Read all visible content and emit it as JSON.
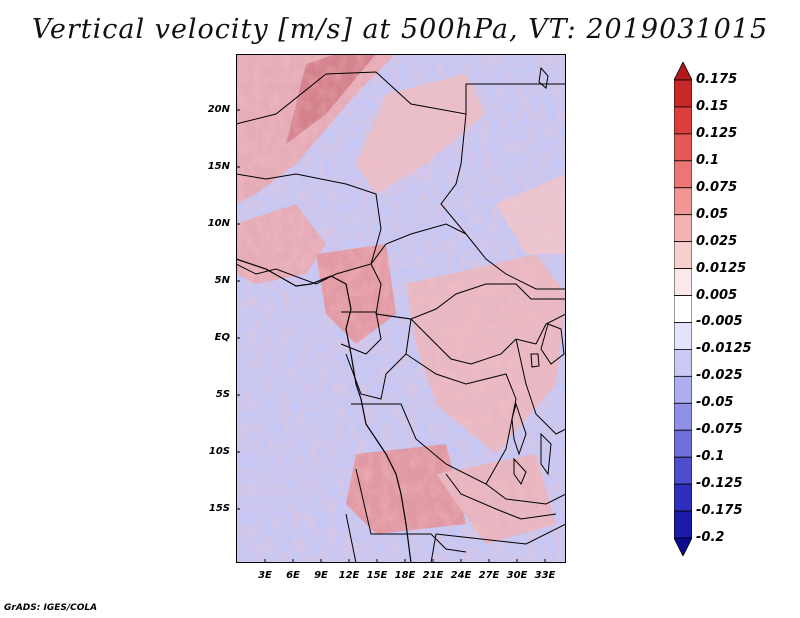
{
  "title": "Vertical velocity [m/s] at 500hPa, VT: 2019031015",
  "credit": "GrADS: IGES/COLA",
  "y_axis": [
    "20N",
    "15N",
    "10N",
    "5N",
    "EQ",
    "5S",
    "10S",
    "15S"
  ],
  "x_axis": [
    "3E",
    "6E",
    "9E",
    "12E",
    "15E",
    "18E",
    "21E",
    "24E",
    "27E",
    "30E",
    "33E"
  ],
  "colorbar": {
    "labels": [
      "0.175",
      "0.15",
      "0.125",
      "0.1",
      "0.075",
      "0.05",
      "0.025",
      "0.0125",
      "0.005",
      "-0.005",
      "-0.0125",
      "-0.025",
      "-0.05",
      "-0.075",
      "-0.1",
      "-0.125",
      "-0.175",
      "-0.2"
    ],
    "colors": [
      "#b1191c",
      "#c9282a",
      "#dc3d3d",
      "#e65858",
      "#ec7676",
      "#f19595",
      "#f5b3b3",
      "#f8cfcf",
      "#fbe8e8",
      "#ffffff",
      "#e3e3fb",
      "#c9c9f5",
      "#adadef",
      "#9090e6",
      "#6f6fdb",
      "#4d4dcd",
      "#2f2fbd",
      "#1a1aa8",
      "#0b0b8f"
    ]
  }
}
